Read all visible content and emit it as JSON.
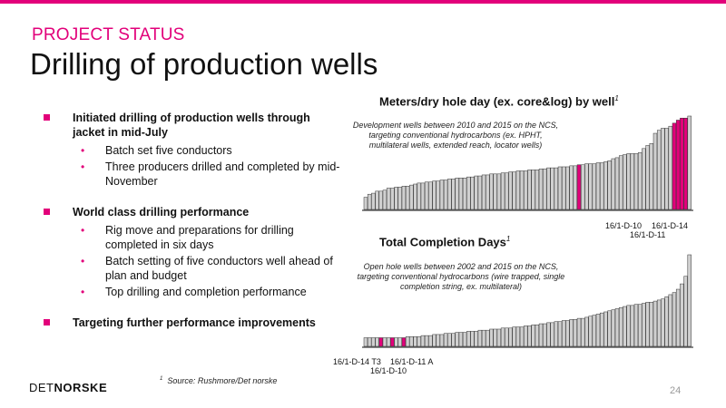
{
  "header": {
    "kicker": "PROJECT STATUS",
    "title": "Drilling of production wells"
  },
  "bullets": [
    {
      "text": "Initiated drilling of production wells through jacket in mid-July",
      "subs": [
        "Batch set five conductors",
        "Three producers drilled and completed by mid-November"
      ]
    },
    {
      "text": "World class drilling performance",
      "subs": [
        "Rig move and preparations for drilling completed in six days",
        "Batch setting of five conductors well ahead of plan and budget",
        "Top drilling and completion performance"
      ]
    },
    {
      "text": "Targeting further performance improvements",
      "subs": []
    }
  ],
  "chart_data": [
    {
      "type": "bar",
      "title": "Meters/dry hole day (ex. core&log) by well",
      "title_footnote": "1",
      "annotation": "Development wells between 2010 and 2015 on the NCS, targeting conventional hydrocarbons (ex. HPHT, multilateral wells, extended reach, locator wells)",
      "highlight_labels": [
        "16/1-D-10",
        "16/1-D-14",
        "16/1-D-11"
      ],
      "highlight_color": "#e2007a",
      "bar_color": "#d0d0d0",
      "values": [
        12,
        15,
        16,
        18,
        18,
        19,
        21,
        21,
        22,
        22,
        23,
        23,
        24,
        25,
        26,
        26,
        27,
        27,
        28,
        28,
        29,
        29,
        30,
        30,
        31,
        31,
        31,
        32,
        32,
        33,
        33,
        34,
        34,
        35,
        35,
        35,
        36,
        36,
        37,
        37,
        38,
        38,
        38,
        39,
        39,
        39,
        40,
        40,
        41,
        41,
        41,
        42,
        42,
        42,
        43,
        43,
        44,
        44,
        45,
        45,
        45,
        46,
        46,
        47,
        48,
        50,
        51,
        53,
        54,
        55,
        55,
        55,
        56,
        60,
        63,
        65,
        75,
        78,
        80,
        80,
        82,
        85,
        88,
        90,
        90,
        92
      ],
      "highlight_indices": [
        56,
        81,
        82,
        83,
        84
      ]
    },
    {
      "type": "bar",
      "title": "Total Completion Days",
      "title_footnote": "1",
      "annotation": "Open hole wells between 2002 and 2015 on the NCS, targeting conventional hydrocarbons (wire trapped, single completion string, ex. multilateral)",
      "highlight_labels": [
        "16/1-D-14 T3",
        "16/1-D-11 A",
        "16/1-D-10"
      ],
      "highlight_color": "#e2007a",
      "bar_color": "#d0d0d0",
      "values": [
        8,
        8,
        8,
        8,
        8,
        8,
        8,
        8,
        8,
        8,
        8,
        9,
        9,
        9,
        9,
        10,
        10,
        10,
        11,
        11,
        11,
        12,
        12,
        12,
        13,
        13,
        13,
        14,
        14,
        14,
        15,
        15,
        15,
        16,
        16,
        16,
        17,
        17,
        17,
        18,
        18,
        18,
        19,
        19,
        20,
        20,
        21,
        21,
        22,
        22,
        23,
        23,
        24,
        24,
        25,
        25,
        26,
        26,
        27,
        28,
        29,
        30,
        31,
        32,
        33,
        34,
        35,
        36,
        37,
        38,
        38,
        39,
        39,
        40,
        41,
        41,
        42,
        43,
        44,
        46,
        48,
        50,
        53,
        58,
        65,
        85
      ],
      "highlight_indices": [
        4,
        7,
        10
      ]
    }
  ],
  "labels": {
    "c1_d10": "16/1-D-10",
    "c1_d14": "16/1-D-14",
    "c1_d11": "16/1-D-11",
    "c2_t3": "16/1-D-14 T3",
    "c2_d11a": "16/1-D-11 A",
    "c2_d10": "16/1-D-10"
  },
  "footer": {
    "footnote_mark": "1",
    "footnote": "Source: Rushmore/Det norske",
    "logo_a": "DET",
    "logo_b": "NORSKE",
    "page": "24"
  }
}
